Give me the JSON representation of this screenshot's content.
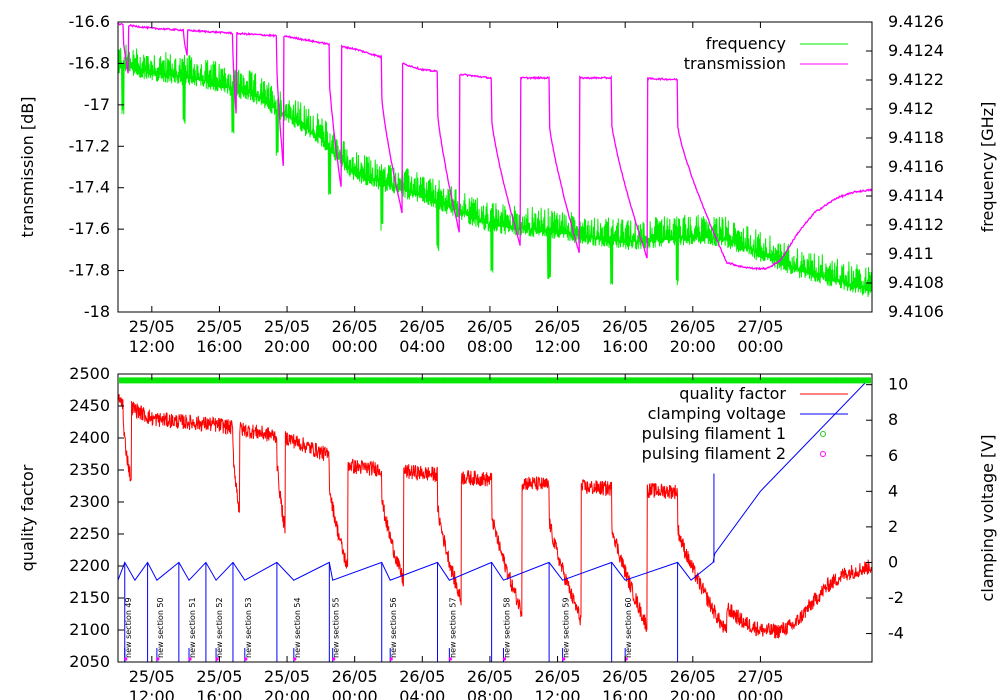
{
  "chart_data": [
    {
      "type": "line",
      "id": "top",
      "xlabel": "",
      "ylabel": "transmission [dB]",
      "y2label": "frequency [GHz]",
      "xlim": [
        10.0,
        54.6
      ],
      "ylim": [
        -18,
        -16.6
      ],
      "y2lim": [
        9.4106,
        9.4126
      ],
      "x_ticks": [
        {
          "h": 12,
          "date": "25/05",
          "time": "12:00"
        },
        {
          "h": 16,
          "date": "25/05",
          "time": "16:00"
        },
        {
          "h": 20,
          "date": "25/05",
          "time": "20:00"
        },
        {
          "h": 24,
          "date": "26/05",
          "time": "00:00"
        },
        {
          "h": 28,
          "date": "26/05",
          "time": "04:00"
        },
        {
          "h": 32,
          "date": "26/05",
          "time": "08:00"
        },
        {
          "h": 36,
          "date": "26/05",
          "time": "12:00"
        },
        {
          "h": 40,
          "date": "26/05",
          "time": "16:00"
        },
        {
          "h": 44,
          "date": "26/05",
          "time": "20:00"
        },
        {
          "h": 48,
          "date": "27/05",
          "time": "00:00"
        }
      ],
      "y_ticks": [
        "-16.6",
        "-16.8",
        "-17",
        "-17.2",
        "-17.4",
        "-17.6",
        "-17.8",
        "-18"
      ],
      "y2_ticks": [
        "9.4126",
        "9.4124",
        "9.4122",
        "9.412",
        "9.4118",
        "9.4116",
        "9.4114",
        "9.4112",
        "9.411",
        "9.4108",
        "9.4106"
      ],
      "legend_position": "top-right",
      "series": [
        {
          "name": "frequency",
          "axis": "y2",
          "color": "#00ee00",
          "x": [
            10,
            12,
            15,
            18,
            20,
            22,
            24,
            28,
            32,
            36,
            40,
            44,
            46,
            50,
            54.6
          ],
          "values": [
            9.4123,
            9.41225,
            9.4122,
            9.4121,
            9.41195,
            9.4118,
            9.41155,
            9.4114,
            9.4112,
            9.41115,
            9.41108,
            9.41112,
            9.4111,
            9.4109,
            9.41075
          ],
          "noise_amplitude": 0.00016
        },
        {
          "name": "transmission",
          "axis": "y",
          "color": "#ff00ff",
          "baseline_x": [
            10,
            12,
            16,
            20,
            24,
            28,
            32,
            36,
            40,
            44,
            46
          ],
          "baseline_values": [
            -16.61,
            -16.63,
            -16.65,
            -16.67,
            -16.73,
            -16.83,
            -16.87,
            -16.87,
            -16.87,
            -16.88,
            -16.87
          ],
          "dips": [
            {
              "start": 10.3,
              "end": 10.6,
              "min": -16.85
            },
            {
              "start": 13.9,
              "end": 14.1,
              "min": -16.77
            },
            {
              "start": 16.8,
              "end": 17.0,
              "min": -17.06
            },
            {
              "start": 19.4,
              "end": 19.8,
              "min": -17.32
            },
            {
              "start": 22.5,
              "end": 23.2,
              "min": -17.4
            },
            {
              "start": 25.6,
              "end": 26.8,
              "min": -17.52
            },
            {
              "start": 28.9,
              "end": 30.2,
              "min": -17.62
            },
            {
              "start": 32.1,
              "end": 33.8,
              "min": -17.68
            },
            {
              "start": 35.5,
              "end": 37.3,
              "min": -17.72
            },
            {
              "start": 39.2,
              "end": 41.3,
              "min": -17.74
            },
            {
              "start": 43.1,
              "end": 46.0,
              "min": -17.76
            }
          ],
          "tail_x": [
            46.0,
            46.8,
            47.6,
            48.4,
            49.2,
            50.2,
            51.2,
            52.5,
            53.6,
            54.6
          ],
          "tail_values": [
            -17.76,
            -17.78,
            -17.79,
            -17.79,
            -17.75,
            -17.62,
            -17.52,
            -17.45,
            -17.42,
            -17.41
          ]
        }
      ]
    },
    {
      "type": "line",
      "id": "bottom",
      "xlabel": "",
      "ylabel": "quality factor",
      "y2label": "clamping voltage [V]",
      "xlim": [
        10.0,
        54.6
      ],
      "ylim": [
        2050,
        2500
      ],
      "y2lim": [
        -5.6,
        10.6
      ],
      "x_ticks": [
        {
          "h": 12,
          "date": "25/05",
          "time": "12:00"
        },
        {
          "h": 16,
          "date": "25/05",
          "time": "16:00"
        },
        {
          "h": 20,
          "date": "25/05",
          "time": "20:00"
        },
        {
          "h": 24,
          "date": "26/05",
          "time": "00:00"
        },
        {
          "h": 28,
          "date": "26/05",
          "time": "04:00"
        },
        {
          "h": 32,
          "date": "26/05",
          "time": "08:00"
        },
        {
          "h": 36,
          "date": "26/05",
          "time": "12:00"
        },
        {
          "h": 40,
          "date": "26/05",
          "time": "16:00"
        },
        {
          "h": 44,
          "date": "26/05",
          "time": "20:00"
        },
        {
          "h": 48,
          "date": "27/05",
          "time": "00:00"
        }
      ],
      "y_ticks": [
        "2500",
        "2450",
        "2400",
        "2350",
        "2300",
        "2250",
        "2200",
        "2150",
        "2100",
        "2050"
      ],
      "y2_ticks": [
        "10",
        "8",
        "6",
        "4",
        "2",
        "0",
        "-2",
        "-4"
      ],
      "legend_position": "top-right",
      "series": [
        {
          "name": "quality factor",
          "axis": "y",
          "color": "#ff0000",
          "baseline_x": [
            10,
            12,
            16,
            20,
            24,
            28,
            32,
            36,
            40,
            44,
            46
          ],
          "baseline_values": [
            2460,
            2430,
            2420,
            2400,
            2355,
            2345,
            2335,
            2325,
            2320,
            2315,
            2310
          ],
          "dips": [
            {
              "start": 10.3,
              "end": 10.8,
              "min": 2330
            },
            {
              "start": 16.8,
              "end": 17.2,
              "min": 2282
            },
            {
              "start": 19.4,
              "end": 19.9,
              "min": 2250
            },
            {
              "start": 22.5,
              "end": 23.6,
              "min": 2195
            },
            {
              "start": 25.6,
              "end": 26.9,
              "min": 2175
            },
            {
              "start": 28.9,
              "end": 30.3,
              "min": 2145
            },
            {
              "start": 32.1,
              "end": 33.9,
              "min": 2128
            },
            {
              "start": 35.5,
              "end": 37.4,
              "min": 2115
            },
            {
              "start": 39.2,
              "end": 41.3,
              "min": 2105
            },
            {
              "start": 43.1,
              "end": 46.0,
              "min": 2095
            }
          ],
          "tail_x": [
            46.0,
            47.0,
            48.0,
            49.0,
            50.0,
            51.0,
            52.0,
            53.0,
            54.6
          ],
          "tail_values": [
            2135,
            2112,
            2100,
            2098,
            2108,
            2140,
            2170,
            2188,
            2200
          ],
          "noise_amplitude": 12
        },
        {
          "name": "clamping voltage",
          "axis": "y2",
          "color": "#0000ff",
          "sawtooth_x": [
            10.0,
            10.4,
            11.0,
            11.75,
            12.3,
            13.6,
            14.2,
            15.2,
            15.8,
            16.8,
            17.5,
            19.4,
            20.4,
            22.5,
            22.7,
            25.6,
            26.1,
            28.9,
            29.6,
            32.1,
            32.8,
            35.5,
            36.3,
            39.2,
            40.0,
            43.1,
            43.9,
            45.2,
            45.3,
            48.0,
            54.5
          ],
          "sawtooth_values": [
            -1.0,
            0.0,
            -1.0,
            0.0,
            -1.0,
            0.0,
            -1.0,
            0.0,
            -1.0,
            0.0,
            -1.0,
            0.0,
            -1.0,
            0.0,
            -1.0,
            0.0,
            -1.0,
            0.0,
            -1.0,
            0.0,
            -1.0,
            0.0,
            -1.0,
            0.0,
            -1.0,
            0.0,
            -1.0,
            0.0,
            0.5,
            4.0,
            10.4
          ],
          "resets": [
            10.4,
            11.75,
            13.6,
            15.2,
            16.8,
            19.4,
            22.5,
            25.6,
            28.9,
            32.1,
            35.5,
            39.2,
            43.1
          ],
          "sawtooth_mode": "ramp then drop to -5.6 at each reset"
        },
        {
          "name": "pulsing filament 1",
          "axis": "y",
          "color": "#00ee00",
          "marker": "circle",
          "level": 2490
        },
        {
          "name": "pulsing filament 2",
          "axis": "y",
          "color": "#ff00ff",
          "marker": "circle",
          "level": 2490
        }
      ],
      "annotations": [
        {
          "text": "new section 49",
          "h": 10.4
        },
        {
          "text": "new section 50",
          "h": 12.3
        },
        {
          "text": "new section 51",
          "h": 14.2
        },
        {
          "text": "new section 52",
          "h": 15.8
        },
        {
          "text": "new section 53",
          "h": 17.5
        },
        {
          "text": "new section 54",
          "h": 20.4
        },
        {
          "text": "new section 55",
          "h": 22.7
        },
        {
          "text": "new section 56",
          "h": 26.1
        },
        {
          "text": "new section 57",
          "h": 29.6
        },
        {
          "text": "new section 58",
          "h": 32.8
        },
        {
          "text": "new section 59",
          "h": 36.3
        },
        {
          "text": "new section 60",
          "h": 40.0
        }
      ]
    }
  ]
}
